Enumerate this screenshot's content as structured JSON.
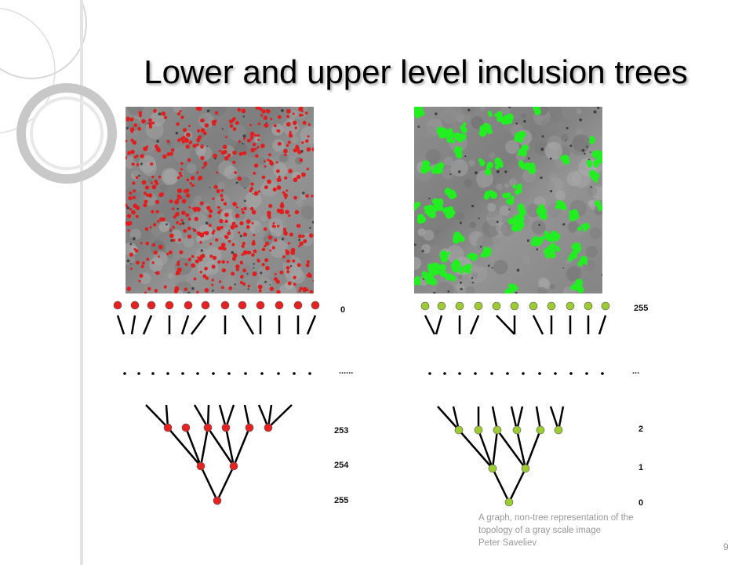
{
  "slide": {
    "title": "Lower and upper level inclusion trees",
    "footer": {
      "line1": "A graph, non-tree representation of the",
      "line2": "topology of a gray scale image",
      "author": "Peter Saveliev"
    },
    "page_number": "9"
  },
  "left_tree": {
    "node_color": "#e52222",
    "top_level_label": "0",
    "ellipsis_label": "......",
    "level_labels": [
      "253",
      "254",
      "255"
    ]
  },
  "right_tree": {
    "node_color": "#9ccc32",
    "top_level_label": "255",
    "ellipsis_label": "...",
    "level_labels": [
      "2",
      "1",
      "0"
    ]
  },
  "images": {
    "left_marker_color": "#e01e1e",
    "right_marker_color": "#22ee22"
  }
}
